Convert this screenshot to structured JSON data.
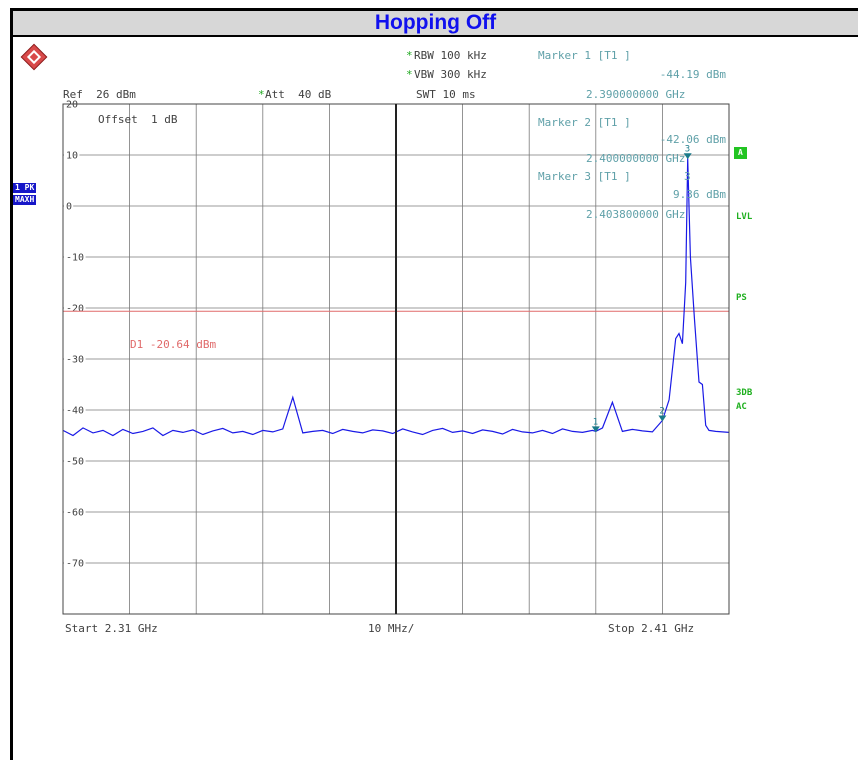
{
  "header": {
    "title": "Hopping Off"
  },
  "settings": {
    "rbw": "RBW 100 kHz",
    "vbw": "VBW 300 kHz",
    "swt": "SWT 10 ms",
    "ref": "Ref  26 dBm",
    "att": "Att  40 dB",
    "offset": "Offset  1 dB"
  },
  "markers": [
    {
      "label": "Marker 1 [T1 ]",
      "level": "-44.19 dBm",
      "freq": "2.390000000 GHz",
      "x": 2.39,
      "y": -44.19,
      "id": "1"
    },
    {
      "label": "Marker 2 [T1 ]",
      "level": "-42.06 dBm",
      "freq": "2.400000000 GHz",
      "x": 2.4,
      "y": -42.06,
      "id": "2"
    },
    {
      "label": "Marker 3 [T1 ]",
      "level": "9.36 dBm",
      "freq": "2.403800000 GHz",
      "x": 2.4038,
      "y": 9.36,
      "id": "3"
    }
  ],
  "side_labels": {
    "trace_mode_1": "1 PK",
    "trace_mode_2": "MAXH",
    "a": "A",
    "lvl": "LVL",
    "ps": "PS",
    "db3": "3DB",
    "ac": "AC"
  },
  "footer": {
    "start": "Start 2.31 GHz",
    "div": "10 MHz/",
    "stop": "Stop 2.41 GHz"
  },
  "display_line": {
    "label": "D1 -20.64 dBm",
    "value": -20.64
  },
  "colors": {
    "trace": "#1a1ae6",
    "marker": "#1a7a8a",
    "grid": "#7a7a7a",
    "display_line": "#e06a6a",
    "title": "#1010ee"
  },
  "chart_data": {
    "type": "line",
    "title": "Hopping Off",
    "xlabel": "",
    "ylabel": "",
    "xlim": [
      2.31,
      2.41
    ],
    "ylim": [
      -80,
      20
    ],
    "y_ticks": [
      20,
      10,
      0,
      -10,
      -20,
      -30,
      -40,
      -50,
      -60,
      -70
    ],
    "grid": true,
    "series": [
      {
        "x": [
          2.31,
          2.3115,
          2.313,
          2.3145,
          2.316,
          2.3175,
          2.319,
          2.3205,
          2.322,
          2.3235,
          2.325,
          2.3265,
          2.328,
          2.3295,
          2.331,
          2.3325,
          2.334,
          2.3355,
          2.337,
          2.3385,
          2.34,
          2.3415,
          2.343,
          2.3445,
          2.346,
          2.3475,
          2.349,
          2.3505,
          2.352,
          2.3535,
          2.355,
          2.3565,
          2.358,
          2.3595,
          2.361,
          2.3625,
          2.364,
          2.3655,
          2.367,
          2.3685,
          2.37,
          2.3715,
          2.373,
          2.3745,
          2.376,
          2.3775,
          2.379,
          2.3805,
          2.382,
          2.3835,
          2.385,
          2.3865,
          2.388,
          2.3895,
          2.39,
          2.391,
          2.3925,
          2.394,
          2.3955,
          2.397,
          2.3985,
          2.4,
          2.401,
          2.402,
          2.4025,
          2.403,
          2.4035,
          2.4038,
          2.4042,
          2.4048,
          2.4055,
          2.406,
          2.4065,
          2.407,
          2.408,
          2.409,
          2.41
        ],
        "values": [
          -44,
          -45,
          -43.5,
          -44.5,
          -44,
          -45,
          -43.8,
          -44.6,
          -44.2,
          -43.5,
          -45,
          -44,
          -44.4,
          -43.9,
          -44.8,
          -44.1,
          -43.6,
          -44.5,
          -44.2,
          -44.8,
          -44,
          -44.3,
          -43.7,
          -37.5,
          -44.5,
          -44.2,
          -44,
          -44.6,
          -43.8,
          -44.2,
          -44.5,
          -43.9,
          -44.1,
          -44.6,
          -43.7,
          -44.3,
          -44.8,
          -44,
          -43.6,
          -44.4,
          -44.1,
          -44.6,
          -43.9,
          -44.2,
          -44.7,
          -43.8,
          -44.3,
          -44.5,
          -44,
          -44.6,
          -43.7,
          -44.2,
          -44.4,
          -44.0,
          -44.19,
          -43.5,
          -38.5,
          -44.2,
          -43.8,
          -44.1,
          -44.3,
          -42.06,
          -38,
          -26,
          -25,
          -27,
          -15,
          9.36,
          -10,
          -22,
          -34.5,
          -35,
          -43,
          -44,
          -44.2,
          -44.3,
          -44.4
        ]
      }
    ]
  }
}
